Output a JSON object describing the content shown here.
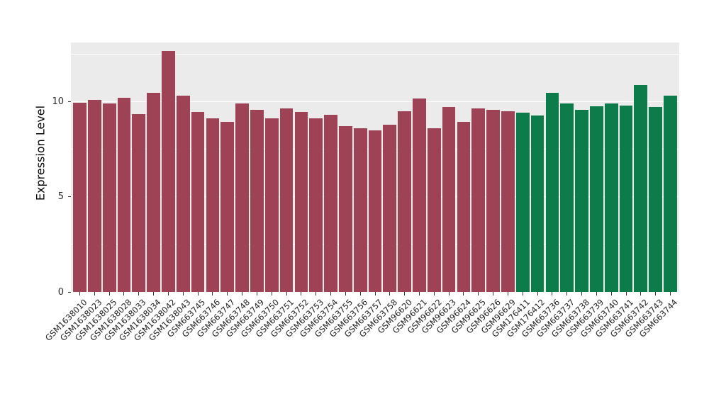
{
  "chart_data": {
    "type": "bar",
    "title": "",
    "xlabel": "",
    "ylabel": "Expression Level",
    "ylim": [
      0,
      13.1
    ],
    "yticks": [
      0,
      5,
      10
    ],
    "grid": {
      "major": [
        0,
        5,
        10
      ],
      "minor": [
        2.5,
        7.5,
        12.5
      ]
    },
    "legend": "none",
    "panel_background": "#EBEBEB",
    "grid_color": "#ffffff",
    "colors": {
      "red": "#9d4355",
      "green": "#0e7b4b"
    },
    "categories": [
      "GSM1638010",
      "GSM1638023",
      "GSM1638025",
      "GSM1638028",
      "GSM1638033",
      "GSM1638034",
      "GSM1638042",
      "GSM1638043",
      "GSM663745",
      "GSM663746",
      "GSM663747",
      "GSM663748",
      "GSM663749",
      "GSM663750",
      "GSM663751",
      "GSM663752",
      "GSM663753",
      "GSM663754",
      "GSM663755",
      "GSM663756",
      "GSM663757",
      "GSM663758",
      "GSM96620",
      "GSM96621",
      "GSM96622",
      "GSM96623",
      "GSM96624",
      "GSM96625",
      "GSM96626",
      "GSM96629",
      "GSM176411",
      "GSM176412",
      "GSM663736",
      "GSM663737",
      "GSM663738",
      "GSM663739",
      "GSM663740",
      "GSM663741",
      "GSM663742",
      "GSM663743",
      "GSM663744"
    ],
    "values": [
      9.95,
      10.1,
      9.9,
      10.2,
      9.35,
      10.45,
      12.65,
      10.3,
      9.45,
      9.1,
      8.95,
      9.9,
      9.55,
      9.1,
      9.65,
      9.45,
      9.1,
      9.3,
      8.7,
      8.6,
      8.5,
      8.8,
      9.5,
      10.15,
      8.6,
      9.7,
      8.95,
      9.65,
      9.55,
      9.5,
      9.4,
      9.25,
      10.45,
      9.9,
      9.55,
      9.75,
      9.9,
      9.8,
      10.85,
      9.7,
      10.3
    ],
    "groups": [
      "red",
      "red",
      "red",
      "red",
      "red",
      "red",
      "red",
      "red",
      "red",
      "red",
      "red",
      "red",
      "red",
      "red",
      "red",
      "red",
      "red",
      "red",
      "red",
      "red",
      "red",
      "red",
      "red",
      "red",
      "red",
      "red",
      "red",
      "red",
      "red",
      "red",
      "green",
      "green",
      "green",
      "green",
      "green",
      "green",
      "green",
      "green",
      "green",
      "green",
      "green"
    ]
  }
}
